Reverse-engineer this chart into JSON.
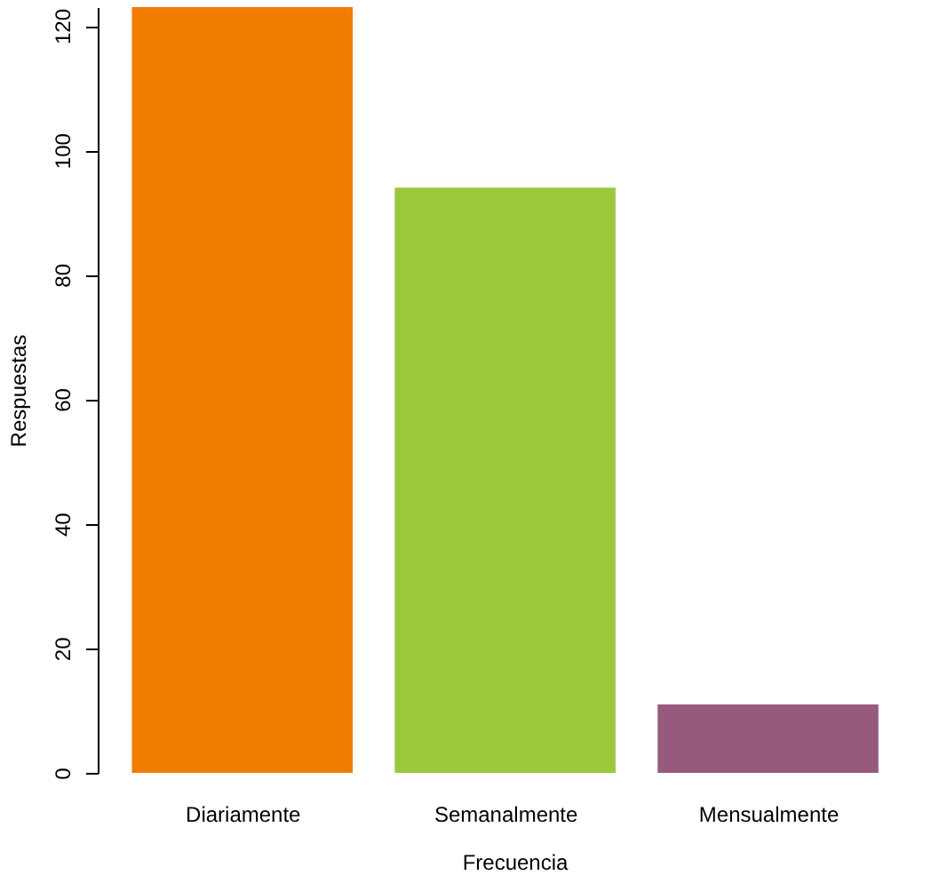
{
  "chart_data": {
    "type": "bar",
    "xlabel": "Frecuencia",
    "ylabel": "Respuestas",
    "categories": [
      "Diariamente",
      "Semanalmente",
      "Mensualmente"
    ],
    "values": [
      123,
      94,
      11
    ],
    "colors": [
      "#f07c00",
      "#9bc83c",
      "#985a7c"
    ],
    "ylim": [
      0,
      123
    ],
    "yticks": [
      0,
      20,
      40,
      60,
      80,
      100,
      120
    ],
    "grid": false,
    "legend": false
  }
}
